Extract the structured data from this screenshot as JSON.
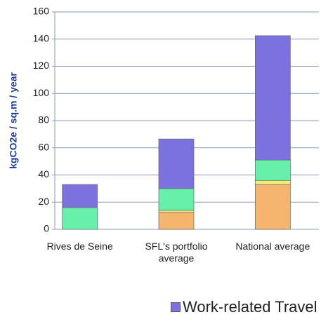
{
  "chart_data": {
    "type": "bar",
    "stacked": true,
    "y_label": "kgCO2e / sq.m / year",
    "categories": [
      "Rives de Seine",
      "SFL's portfolio average",
      "National average"
    ],
    "series": [
      {
        "color": "#f5b56e",
        "values": [
          0,
          12.5,
          33
        ]
      },
      {
        "color": "#f0f07a",
        "values": [
          0,
          1.5,
          3
        ]
      },
      {
        "color": "#66f0aa",
        "values": [
          16,
          16,
          15
        ]
      },
      {
        "name": "Work-related Travel",
        "color": "#7b72e0",
        "values": [
          17,
          36.5,
          91.5
        ]
      }
    ],
    "ylim": [
      0,
      160
    ],
    "yticks": [
      0,
      20,
      40,
      60,
      80,
      100,
      120,
      140,
      160
    ],
    "grid": true
  }
}
